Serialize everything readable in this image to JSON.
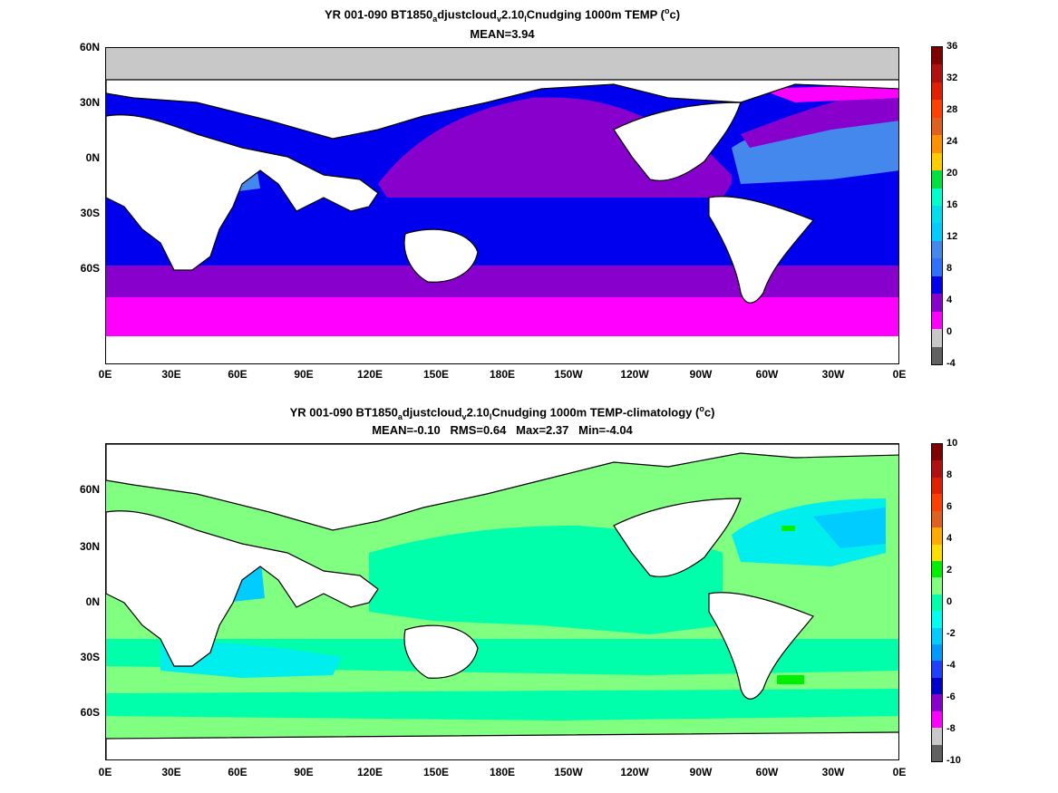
{
  "panels": [
    {
      "id": "top",
      "title": {
        "prefix": "YR 001-090 BT1850",
        "sub1": "a",
        "mid1": "djustcloud",
        "sub2": "v",
        "mid2": "2.10",
        "sub3": "l",
        "mid3": "Cnudging 1000m TEMP (",
        "sup": "o",
        "suffix": "c)"
      },
      "stats": "MEAN=3.94",
      "colorbar": {
        "labels": [
          "36",
          "32",
          "28",
          "24",
          "20",
          "16",
          "12",
          "8",
          "4",
          "0",
          "-4"
        ],
        "colors": [
          "#800000",
          "#b01010",
          "#e02000",
          "#ff4000",
          "#e06020",
          "#ff9000",
          "#ffcc00",
          "#00e040",
          "#00ffcc",
          "#00ddee",
          "#00ccff",
          "#4488ee",
          "#3070ff",
          "#0000ee",
          "#8800cc",
          "#ff00ff",
          "#c8c8c8",
          "#606060"
        ]
      }
    },
    {
      "id": "bottom",
      "title": {
        "prefix": "YR 001-090 BT1850",
        "sub1": "a",
        "mid1": "djustcloud",
        "sub2": "v",
        "mid2": "2.10",
        "sub3": "l",
        "mid3": "Cnudging 1000m TEMP-climatology (",
        "sup": "o",
        "suffix": "c)"
      },
      "stats": "MEAN=-0.10   RMS=0.64   Max=2.37   Min=-4.04",
      "colorbar": {
        "labels": [
          "10",
          "8",
          "6",
          "4",
          "2",
          "0",
          "-2",
          "-4",
          "-6",
          "-8",
          "-10"
        ],
        "colors": [
          "#800000",
          "#b01010",
          "#e02000",
          "#ff4000",
          "#e06020",
          "#ffaa00",
          "#ffdd00",
          "#00ee00",
          "#80ff80",
          "#00ffaa",
          "#00ffee",
          "#00ccff",
          "#0099ff",
          "#2040ff",
          "#0000cc",
          "#8800cc",
          "#ff00ff",
          "#c8c8c8",
          "#606060"
        ]
      }
    }
  ],
  "axes": {
    "lon_ticks": [
      "0E",
      "30E",
      "60E",
      "90E",
      "120E",
      "150E",
      "180E",
      "150W",
      "120W",
      "90W",
      "60W",
      "30W",
      "0E"
    ],
    "lat_ticks": [
      "60N",
      "30N",
      "0N",
      "30S",
      "60S"
    ]
  },
  "map_colors": {
    "land": "#ffffff",
    "ice": "#c8c8c8",
    "coast": "#000000",
    "top_magenta": "#ff00ff",
    "top_purple": "#8800cc",
    "top_blue": "#0000ee",
    "top_lightblue": "#4488ee",
    "top_cyan": "#00e5ee",
    "bot_lightgreen": "#80ff80",
    "bot_cyan": "#00ffaa",
    "bot_sky": "#00eeee",
    "bot_blue": "#00ccff",
    "bot_green": "#00ee00"
  }
}
